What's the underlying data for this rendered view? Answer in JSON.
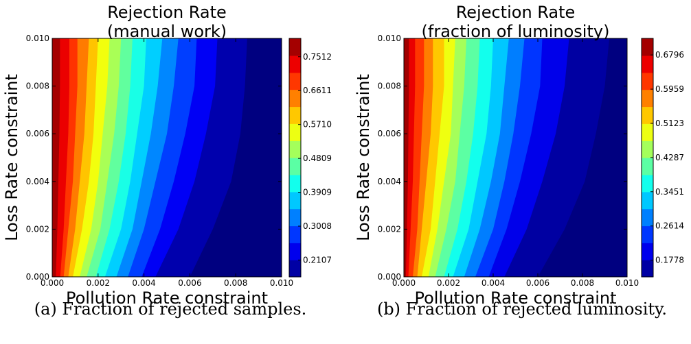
{
  "chart_data": [
    {
      "type": "heatmap",
      "subtype": "filled-contour",
      "title": "Rejection Rate",
      "subtitle": "(manual work)",
      "xlabel": "Pollution Rate constraint",
      "ylabel": "Loss Rate constraint",
      "xlim": [
        0.0,
        0.01
      ],
      "ylim": [
        0.0,
        0.01
      ],
      "x_ticks": [
        "0.000",
        "0.002",
        "0.004",
        "0.006",
        "0.008",
        "0.010"
      ],
      "y_ticks": [
        "0.000",
        "0.002",
        "0.004",
        "0.006",
        "0.008",
        "0.010"
      ],
      "colormap": "jet",
      "color_range": [
        0.166,
        0.8
      ],
      "colorbar_ticks": [
        "0.7512",
        "0.6611",
        "0.5710",
        "0.4809",
        "0.3909",
        "0.3008",
        "0.2107"
      ],
      "colorbar_tick_values": [
        0.7512,
        0.6611,
        0.571,
        0.4809,
        0.3909,
        0.3008,
        0.2107
      ],
      "level_boundaries_x": [
        {
          "level": 0.733,
          "x": [
            0.00075,
            0.00075,
            0.0007,
            0.0006,
            0.0005,
            0.00035
          ]
        },
        {
          "level": 0.689,
          "x": [
            0.0011,
            0.0011,
            0.001,
            0.0009,
            0.0007,
            0.0005
          ]
        },
        {
          "level": 0.644,
          "x": [
            0.0016,
            0.0015,
            0.0014,
            0.0012,
            0.001,
            0.0007
          ]
        },
        {
          "level": 0.599,
          "x": [
            0.002,
            0.0019,
            0.0018,
            0.0016,
            0.0013,
            0.0009
          ]
        },
        {
          "level": 0.554,
          "x": [
            0.0025,
            0.0024,
            0.0022,
            0.002,
            0.0017,
            0.0012
          ]
        },
        {
          "level": 0.509,
          "x": [
            0.003,
            0.0029,
            0.0027,
            0.0024,
            0.0021,
            0.0015
          ]
        },
        {
          "level": 0.464,
          "x": [
            0.0035,
            0.0034,
            0.0032,
            0.0029,
            0.0025,
            0.0019
          ]
        },
        {
          "level": 0.419,
          "x": [
            0.0041,
            0.004,
            0.0037,
            0.0034,
            0.003,
            0.0023
          ]
        },
        {
          "level": 0.374,
          "x": [
            0.0048,
            0.0046,
            0.0043,
            0.0039,
            0.0035,
            0.0028
          ]
        },
        {
          "level": 0.329,
          "x": [
            0.0055,
            0.0053,
            0.005,
            0.0045,
            0.004,
            0.0033
          ]
        },
        {
          "level": 0.284,
          "x": [
            0.0063,
            0.0062,
            0.0058,
            0.0053,
            0.0047,
            0.0039
          ]
        },
        {
          "level": 0.239,
          "x": [
            0.0072,
            0.0071,
            0.0067,
            0.0062,
            0.0055,
            0.0045
          ]
        },
        {
          "level": 0.194,
          "x": [
            0.0085,
            0.0084,
            0.0082,
            0.0078,
            0.007,
            0.006
          ]
        }
      ],
      "boundary_y": [
        0.01,
        0.008,
        0.006,
        0.004,
        0.002,
        0.0
      ]
    },
    {
      "type": "heatmap",
      "subtype": "filled-contour",
      "title": "Rejection Rate",
      "subtitle": "(fraction of luminosity)",
      "xlabel": "Pollution Rate constraint",
      "ylabel": "Loss Rate constraint",
      "xlim": [
        0.0,
        0.01
      ],
      "ylim": [
        0.0,
        0.01
      ],
      "x_ticks": [
        "0.000",
        "0.002",
        "0.004",
        "0.006",
        "0.008",
        "0.010"
      ],
      "y_ticks": [
        "0.000",
        "0.002",
        "0.004",
        "0.006",
        "0.008",
        "0.010"
      ],
      "colormap": "jet",
      "color_range": [
        0.137,
        0.72
      ],
      "colorbar_ticks": [
        "0.6796",
        "0.5959",
        "0.5123",
        "0.4287",
        "0.3451",
        "0.2614",
        "0.1778"
      ],
      "colorbar_tick_values": [
        0.6796,
        0.5959,
        0.5123,
        0.4287,
        0.3451,
        0.2614,
        0.1778
      ],
      "level_boundaries_x": [
        {
          "level": 0.659,
          "x": [
            0.0005,
            0.0005,
            0.00045,
            0.0004,
            0.0003,
            0.0002
          ]
        },
        {
          "level": 0.617,
          "x": [
            0.0009,
            0.0009,
            0.0008,
            0.0007,
            0.0006,
            0.0004
          ]
        },
        {
          "level": 0.575,
          "x": [
            0.0013,
            0.0013,
            0.0012,
            0.001,
            0.0008,
            0.0006
          ]
        },
        {
          "level": 0.533,
          "x": [
            0.0018,
            0.0018,
            0.0016,
            0.0014,
            0.0012,
            0.0008
          ]
        },
        {
          "level": 0.492,
          "x": [
            0.0023,
            0.0022,
            0.0021,
            0.0018,
            0.0015,
            0.0011
          ]
        },
        {
          "level": 0.45,
          "x": [
            0.0028,
            0.0027,
            0.0025,
            0.0023,
            0.0019,
            0.0014
          ]
        },
        {
          "level": 0.408,
          "x": [
            0.0034,
            0.0033,
            0.0031,
            0.0028,
            0.0024,
            0.0018
          ]
        },
        {
          "level": 0.366,
          "x": [
            0.004,
            0.0039,
            0.0037,
            0.0033,
            0.0029,
            0.0022
          ]
        },
        {
          "level": 0.324,
          "x": [
            0.0047,
            0.0045,
            0.0043,
            0.0039,
            0.0034,
            0.0027
          ]
        },
        {
          "level": 0.282,
          "x": [
            0.0054,
            0.0052,
            0.0049,
            0.0045,
            0.004,
            0.0032
          ]
        },
        {
          "level": 0.24,
          "x": [
            0.0062,
            0.0061,
            0.0057,
            0.0052,
            0.0046,
            0.0038
          ]
        },
        {
          "level": 0.198,
          "x": [
            0.0074,
            0.0072,
            0.0068,
            0.0062,
            0.0055,
            0.0045
          ]
        },
        {
          "level": 0.157,
          "x": [
            0.0092,
            0.009,
            0.0086,
            0.0081,
            0.0072,
            0.006
          ]
        }
      ],
      "boundary_y": [
        0.01,
        0.008,
        0.006,
        0.004,
        0.002,
        0.0
      ]
    }
  ],
  "captions": [
    "(a) Fraction of rejected samples.",
    "(b) Fraction of rejected luminosity."
  ]
}
